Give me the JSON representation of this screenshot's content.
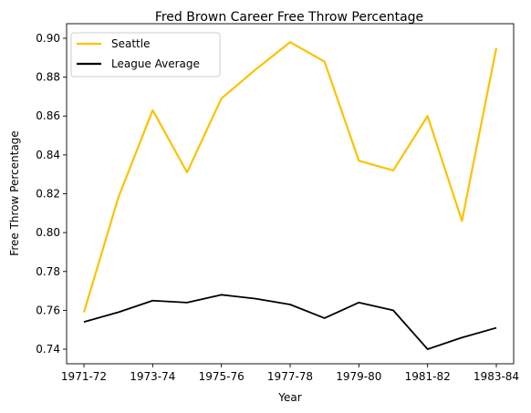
{
  "chart_data": {
    "type": "line",
    "title": "Fred Brown  Career Free Throw Percentage",
    "xlabel": "Year",
    "ylabel": "Free Throw Percentage",
    "x": [
      "1971-72",
      "1972-73",
      "1973-74",
      "1974-75",
      "1975-76",
      "1976-77",
      "1977-78",
      "1978-79",
      "1979-80",
      "1980-81",
      "1981-82",
      "1982-83",
      "1983-84"
    ],
    "xtick_labels": [
      "1971-72",
      "1973-74",
      "1975-76",
      "1977-78",
      "1979-80",
      "1981-82",
      "1983-84"
    ],
    "ylim": [
      0.7325,
      0.9075
    ],
    "yticks": [
      0.74,
      0.76,
      0.78,
      0.8,
      0.82,
      0.84,
      0.86,
      0.88,
      0.9
    ],
    "ytick_labels": [
      "0.74",
      "0.76",
      "0.78",
      "0.80",
      "0.82",
      "0.84",
      "0.86",
      "0.88",
      "0.90"
    ],
    "grid": false,
    "legend_position": "top-left",
    "series": [
      {
        "name": "Seattle",
        "color": "#fcc200",
        "values": [
          0.759,
          0.818,
          0.863,
          0.831,
          0.869,
          0.884,
          0.898,
          0.888,
          0.837,
          0.832,
          0.86,
          0.806,
          0.895
        ]
      },
      {
        "name": "League Average",
        "color": "#000000",
        "values": [
          0.754,
          0.759,
          0.765,
          0.764,
          0.768,
          0.766,
          0.763,
          0.756,
          0.764,
          0.76,
          0.74,
          0.746,
          0.751
        ]
      }
    ]
  }
}
